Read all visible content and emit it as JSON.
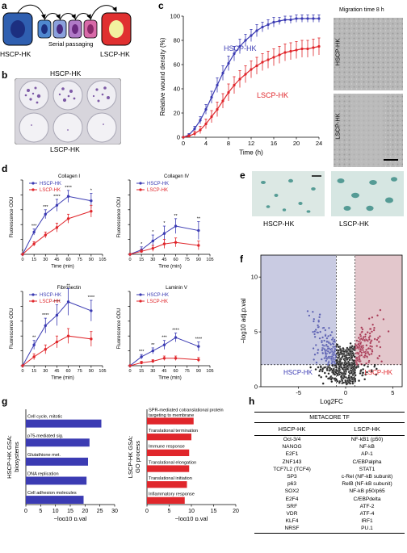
{
  "panel_labels": {
    "a": "a",
    "b": "b",
    "c": "c",
    "d": "d",
    "e": "e",
    "f": "f",
    "g": "g",
    "h": "h"
  },
  "panel_a": {
    "left": "HSCP-HK",
    "middle": "Serial passaging",
    "right": "LSCP-HK"
  },
  "panel_b": {
    "top": "HSCP-HK",
    "bottom": "LSCP-HK"
  },
  "panel_c": {
    "image_title": "Migration time 8 h",
    "image_top_label": "HSCP-HK",
    "image_bottom_label": "LSCP-HK"
  },
  "panel_e": {
    "left": "HSCP-HK",
    "right": "LSCP-HK"
  },
  "panel_h": {
    "title": "METACORE TF",
    "col1": "HSCP-HK",
    "col2": "LSCP-HK",
    "rows": [
      [
        "Oct-3/4",
        "NF-kB1 (p50)"
      ],
      [
        "NANOG",
        "NF-kB"
      ],
      [
        "E2F1",
        "AP-1"
      ],
      [
        "ZNF143",
        "C/EBPalpha"
      ],
      [
        "TCF7L2 (TCF4)",
        "STAT1"
      ],
      [
        "SP3",
        "c-Rel (NF-kB subunit)"
      ],
      [
        "p63",
        "RelB (NF-kB subunit)"
      ],
      [
        "SOX2",
        "NF-kB p50/p65"
      ],
      [
        "E2F4",
        "C/EBPdelta"
      ],
      [
        "SRF",
        "ATF-2"
      ],
      [
        "VDR",
        "ATF-4"
      ],
      [
        "KLF4",
        "IRF1"
      ],
      [
        "NRSF",
        "PU.1"
      ]
    ]
  },
  "colors": {
    "hscp": "#3b3bb3",
    "lscp": "#e0262b",
    "volcano_blue_bg": "#c9cbe2",
    "volcano_red_bg": "#e3c7cc"
  },
  "chart_data": [
    {
      "id": "c",
      "type": "line",
      "xlabel": "Time (h)",
      "ylabel": "Relative wound density (%)",
      "xlim": [
        0,
        24
      ],
      "ylim": [
        0,
        100
      ],
      "xticks": [
        0,
        4,
        8,
        12,
        16,
        20,
        24
      ],
      "yticks": [
        0,
        20,
        40,
        60,
        80,
        100
      ],
      "x": [
        0,
        1,
        2,
        3,
        4,
        5,
        6,
        7,
        8,
        9,
        10,
        11,
        12,
        13,
        14,
        15,
        16,
        17,
        18,
        19,
        20,
        21,
        22,
        23,
        24
      ],
      "series": [
        {
          "name": "HSCP-HK",
          "color": "#3b3bb3",
          "values": [
            0,
            2,
            7,
            14,
            23,
            33,
            43,
            53,
            61,
            69,
            75,
            80,
            84,
            88,
            91,
            93,
            95,
            96,
            97,
            97,
            98,
            98,
            98,
            98,
            98
          ],
          "err": [
            0,
            1,
            2,
            3,
            4,
            5,
            6,
            6,
            6,
            6,
            6,
            5,
            5,
            5,
            4,
            4,
            4,
            3,
            3,
            3,
            3,
            3,
            3,
            3,
            3
          ]
        },
        {
          "name": "LSCP-HK",
          "color": "#e0262b",
          "values": [
            0,
            1,
            3,
            6,
            11,
            17,
            23,
            30,
            37,
            43,
            48,
            52,
            56,
            59,
            62,
            64,
            66,
            68,
            70,
            71,
            72,
            73,
            73,
            74,
            75
          ],
          "err": [
            0,
            1,
            2,
            3,
            4,
            5,
            6,
            6,
            7,
            7,
            7,
            7,
            7,
            7,
            7,
            7,
            7,
            7,
            7,
            7,
            7,
            7,
            7,
            7,
            7
          ]
        }
      ]
    },
    {
      "id": "d1",
      "type": "line",
      "title": "Collagen I",
      "xlabel": "Time (min)",
      "ylabel": "Fluorescence ODU",
      "x": [
        0,
        15,
        30,
        45,
        60,
        90
      ],
      "xticks": [
        0,
        15,
        30,
        45,
        60,
        75,
        90,
        105
      ],
      "ylim": [
        0,
        5000
      ],
      "annotations": [
        "*",
        "***",
        "***",
        "****",
        "****",
        "*"
      ],
      "series": [
        {
          "name": "HSCP-HK",
          "color": "#3b3bb3",
          "values": [
            0,
            1500,
            2700,
            3300,
            3900,
            3600
          ],
          "err": [
            0,
            200,
            300,
            400,
            400,
            500
          ]
        },
        {
          "name": "LSCP-HK",
          "color": "#e0262b",
          "values": [
            0,
            700,
            1300,
            1800,
            2400,
            2900
          ],
          "err": [
            0,
            150,
            200,
            300,
            300,
            400
          ]
        }
      ]
    },
    {
      "id": "d2",
      "type": "line",
      "title": "Collagen IV",
      "xlabel": "Time (min)",
      "ylabel": "Fluorescence ODU",
      "x": [
        0,
        15,
        30,
        45,
        60,
        90
      ],
      "xticks": [
        0,
        15,
        30,
        45,
        60,
        75,
        90,
        105
      ],
      "ylim": [
        0,
        5000
      ],
      "annotations": [
        "",
        "*",
        "*",
        "*",
        "**",
        "**"
      ],
      "series": [
        {
          "name": "HSCP-HK",
          "color": "#3b3bb3",
          "values": [
            0,
            300,
            900,
            1400,
            1900,
            1600
          ],
          "err": [
            0,
            200,
            400,
            500,
            500,
            600
          ]
        },
        {
          "name": "LSCP-HK",
          "color": "#e0262b",
          "values": [
            0,
            200,
            400,
            700,
            800,
            600
          ],
          "err": [
            0,
            100,
            200,
            300,
            300,
            300
          ]
        }
      ]
    },
    {
      "id": "d3",
      "type": "line",
      "title": "Fibronectin",
      "xlabel": "Time (min)",
      "ylabel": "Fluorescence ODU",
      "x": [
        0,
        15,
        30,
        45,
        60,
        90
      ],
      "xticks": [
        0,
        15,
        30,
        45,
        60,
        75,
        90,
        105
      ],
      "ylim": [
        0,
        5000
      ],
      "annotations": [
        "",
        "**",
        "****",
        "****",
        "**",
        "****"
      ],
      "series": [
        {
          "name": "HSCP-HK",
          "color": "#3b3bb3",
          "values": [
            0,
            1400,
            2700,
            3400,
            4300,
            3700
          ],
          "err": [
            0,
            300,
            500,
            700,
            900,
            700
          ]
        },
        {
          "name": "LSCP-HK",
          "color": "#e0262b",
          "values": [
            0,
            600,
            1100,
            1600,
            2000,
            1800
          ],
          "err": [
            0,
            200,
            300,
            400,
            500,
            500
          ]
        }
      ]
    },
    {
      "id": "d4",
      "type": "line",
      "title": "Laminin V",
      "xlabel": "Time (min)",
      "ylabel": "Fluorescence ODU",
      "x": [
        0,
        15,
        30,
        45,
        60,
        90
      ],
      "xticks": [
        0,
        15,
        30,
        45,
        60,
        75,
        90,
        105
      ],
      "ylim": [
        0,
        5000
      ],
      "annotations": [
        "",
        "***",
        "**",
        "***",
        "****",
        "****"
      ],
      "series": [
        {
          "name": "HSCP-HK",
          "color": "#3b3bb3",
          "values": [
            0,
            600,
            1000,
            1400,
            1900,
            1300
          ],
          "err": [
            0,
            150,
            200,
            300,
            300,
            300
          ]
        },
        {
          "name": "LSCP-HK",
          "color": "#e0262b",
          "values": [
            0,
            200,
            300,
            500,
            500,
            400
          ],
          "err": [
            0,
            100,
            100,
            150,
            150,
            150
          ]
        }
      ]
    },
    {
      "id": "f",
      "type": "scatter",
      "xlabel": "Log2FC",
      "ylabel": "−log10 adj.p.val",
      "xlim": [
        -9,
        6
      ],
      "ylim": [
        0,
        12
      ],
      "xticks": [
        -5,
        0,
        5
      ],
      "yticks": [
        0,
        5,
        10
      ],
      "thresholds": {
        "fc": 1,
        "p": 2
      },
      "region_labels": [
        "HSCP-HK",
        "LSCP-HK"
      ]
    },
    {
      "id": "g1",
      "type": "bar",
      "orientation": "horizontal",
      "ylabel": "HSCP-HK GSA: biosystems",
      "xlabel": "−log10 p.val",
      "xlim": [
        0,
        30
      ],
      "xticks": [
        0,
        5,
        10,
        15,
        20,
        25,
        30
      ],
      "color": "#3b3bb3",
      "categories": [
        "Cell cycle, mitotic",
        "p75-mediated sig.",
        "Glutathione met.",
        "DNA replication",
        "Cell adhesion molecules"
      ],
      "values": [
        25.5,
        21.5,
        21,
        20.5,
        19.5
      ]
    },
    {
      "id": "g2",
      "type": "bar",
      "orientation": "horizontal",
      "ylabel": "LSCP-HK GSA: GO process",
      "xlabel": "−log10 p.val",
      "xlim": [
        0,
        20
      ],
      "xticks": [
        0,
        5,
        10,
        15,
        20
      ],
      "color": "#e0262b",
      "categories": [
        "SPR-mediated cotranslational protein targeting to membrane",
        "Translational termination",
        "Immune response",
        "Translational elongation",
        "Translational initiation",
        "Inflammatory response"
      ],
      "values": [
        10.5,
        10,
        9.5,
        9.5,
        9,
        8.5
      ]
    }
  ]
}
